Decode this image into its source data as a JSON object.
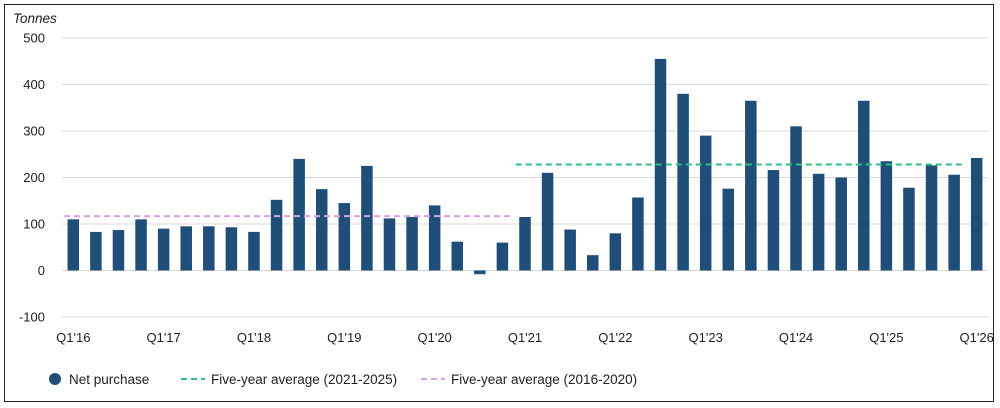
{
  "chart_data": {
    "type": "bar",
    "ylabel": "Tonnes",
    "ylim": [
      -100,
      500
    ],
    "yticks": [
      500,
      400,
      300,
      200,
      100,
      0,
      -100
    ],
    "grid": true,
    "legend_position": "bottom-left",
    "categories": [
      "Q1'16",
      "Q2'16",
      "Q3'16",
      "Q4'16",
      "Q1'17",
      "Q2'17",
      "Q3'17",
      "Q4'17",
      "Q1'18",
      "Q2'18",
      "Q3'18",
      "Q4'18",
      "Q1'19",
      "Q2'19",
      "Q3'19",
      "Q4'19",
      "Q1'20",
      "Q2'20",
      "Q3'20",
      "Q4'20",
      "Q1'21",
      "Q2'21",
      "Q3'21",
      "Q4'21",
      "Q1'22",
      "Q2'22",
      "Q3'22",
      "Q4'22",
      "Q1'23",
      "Q2'23",
      "Q3'23",
      "Q4'23",
      "Q1'24",
      "Q2'24",
      "Q3'24",
      "Q4'24",
      "Q1'25",
      "Q2'25",
      "Q3'25",
      "Q4'25",
      "Q1'26"
    ],
    "x_tick_labels": [
      "Q1'16",
      "Q1'17",
      "Q1'18",
      "Q1'19",
      "Q1'20",
      "Q1'21",
      "Q1'22",
      "Q1'23",
      "Q1'24",
      "Q1'25",
      "Q1'26"
    ],
    "series": [
      {
        "name": "Net purchase",
        "color": "#1f4e79",
        "values": [
          110,
          83,
          87,
          110,
          90,
          95,
          95,
          93,
          83,
          152,
          240,
          175,
          145,
          225,
          112,
          115,
          140,
          62,
          -8,
          60,
          115,
          210,
          88,
          33,
          80,
          157,
          455,
          380,
          290,
          176,
          365,
          216,
          310,
          208,
          200,
          365,
          235,
          178,
          226,
          206,
          242
        ]
      }
    ],
    "reference_lines": [
      {
        "name": "Five-year average (2021-2025)",
        "value": 228,
        "x_start": "Q1'21",
        "x_end": "Q4'25",
        "color": "#2ec27e",
        "style": "dashed"
      },
      {
        "name": "Five-year average (2016-2020)",
        "value": 117,
        "x_start": "Q1'16",
        "x_end": "Q4'20",
        "color": "#d9a0e8",
        "style": "dashed"
      }
    ]
  },
  "legend": {
    "net_purchase": "Net purchase",
    "avg_2021_2025": "Five-year average (2021-2025)",
    "avg_2016_2020": "Five-year average (2016-2020)"
  }
}
